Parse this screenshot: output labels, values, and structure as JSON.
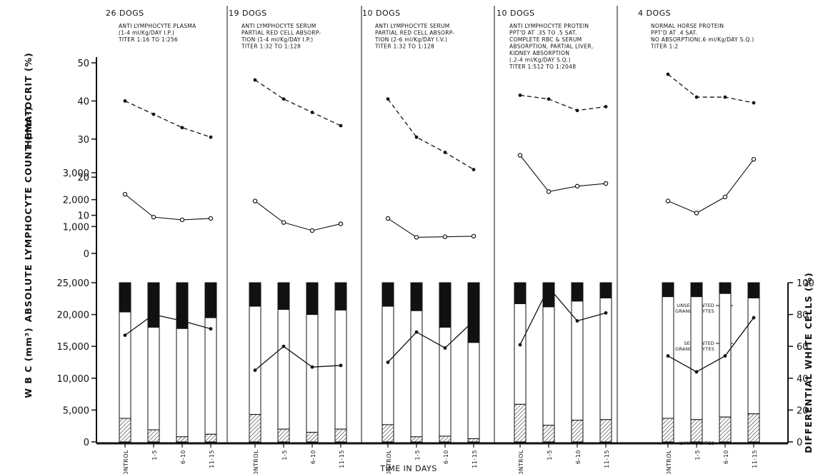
{
  "chart_data": {
    "type": "line",
    "xlabel": "TIME IN DAYS",
    "categories": [
      "CONTROL",
      "1-5",
      "6-10",
      "11-15"
    ],
    "panels": {
      "hematocrit": {
        "ylabel": "HEMATOCRIT (%)",
        "ylim": [
          0,
          50
        ],
        "ticks": [
          "0",
          "10",
          "20",
          "30",
          "40",
          "50"
        ]
      },
      "lymph": {
        "ylabel": "ABSOLUTE LYMPHOCYTE COUNT (mm³)",
        "ylim": [
          0,
          3000
        ],
        "ticks": [
          "0",
          "1,000",
          "2,000",
          "3,000"
        ]
      },
      "wbc": {
        "ylabel": "W B C (mm³)",
        "ylim": [
          0,
          25000
        ],
        "ticks": [
          "0",
          "5,000",
          "10,000",
          "15,000",
          "20,000",
          "25,000"
        ]
      },
      "diff": {
        "ylabel": "DIFFERENTIAL WHITE CELLS (%)",
        "ylim": [
          0,
          100
        ],
        "ticks": [
          "0",
          "20",
          "40",
          "60",
          "80",
          "100"
        ]
      }
    },
    "annotations": {
      "unsegmented": [
        "UNSEGMENTED",
        "GRANULOCYTES"
      ],
      "segmented": [
        "SEGMENTED",
        "GRANULOCYTES"
      ],
      "lymphocytes": "LYMPHOCYTES"
    },
    "groups": [
      {
        "title": "26 DOGS",
        "desc": [
          "ANTI LYMPHOCYTE PLASMA",
          "(1-4 ml/Kg/DAY I.P.)",
          "TITER 1:16 TO 1:256"
        ],
        "ticks": [
          "CONTROL",
          "1-5",
          "6-10",
          "11-15"
        ],
        "hematocrit": [
          40,
          36.5,
          33,
          30.5
        ],
        "lymph": [
          2200,
          1350,
          1250,
          1300
        ],
        "wbc_pct": [
          67,
          80,
          76,
          71
        ],
        "wbc_stack": [
          {
            "lymph": 3700,
            "seg": 20400,
            "total": 25000
          },
          {
            "lymph": 1900,
            "seg": 18000,
            "total": 25000
          },
          {
            "lymph": 800,
            "seg": 17800,
            "total": 25000
          },
          {
            "lymph": 1200,
            "seg": 19500,
            "total": 25000
          }
        ]
      },
      {
        "title": "19 DOGS",
        "desc": [
          "ANTI LYMPHOCYTE SERUM",
          "PARTIAL RED CELL ABSORP-",
          "TION (1-4 ml/Kg/DAY I.P.)",
          "TITER 1:32 TO 1:128"
        ],
        "ticks": [
          "CONTROL",
          "1-5",
          "6-10",
          "11-15"
        ],
        "hematocrit": [
          45.5,
          40.5,
          37,
          33.5
        ],
        "lymph": [
          1950,
          1150,
          850,
          1100
        ],
        "wbc_pct": [
          45,
          60,
          47,
          48
        ],
        "wbc_stack": [
          {
            "lymph": 4300,
            "seg": 21300,
            "total": 25000
          },
          {
            "lymph": 2000,
            "seg": 20800,
            "total": 25000
          },
          {
            "lymph": 1500,
            "seg": 20000,
            "total": 25000
          },
          {
            "lymph": 2000,
            "seg": 20700,
            "total": 25000
          }
        ]
      },
      {
        "title": "10 DOGS",
        "desc": [
          "ANTI LYMPHOCYTE SERUM",
          "PARTIAL RED CELL ABSORP-",
          "TION (2-6 ml/Kg/DAY I.V.)",
          "TITER 1:32 TO 1:128"
        ],
        "ticks": [
          "CONTROL",
          "1-5",
          "6-10",
          "11-15"
        ],
        "hematocrit": [
          40.5,
          30.5,
          26.5,
          22
        ],
        "lymph": [
          1300,
          600,
          620,
          640
        ],
        "wbc_pct": [
          50,
          69,
          59,
          76
        ],
        "wbc_stack": [
          {
            "lymph": 2700,
            "seg": 21300,
            "total": 25000
          },
          {
            "lymph": 800,
            "seg": 20600,
            "total": 25000
          },
          {
            "lymph": 900,
            "seg": 18000,
            "total": 25000
          },
          {
            "lymph": 500,
            "seg": 15600,
            "total": 25000
          }
        ]
      },
      {
        "title": "10 DOGS",
        "desc": [
          "ANTI LYMPHOCYTE PROTEIN",
          "PPT'D AT .35 TO .5 SAT.",
          "COMPLETE RBC & SERUM",
          "ABSORPTION, PARTIAL LIVER,",
          "KIDNEY ABSORPTION",
          "(.2-4 ml/Kg/DAY S.Q.)",
          "TITER 1:512 TO 1:2048"
        ],
        "ticks": [
          "CONTROL",
          "1-5",
          "6-10",
          "11-15"
        ],
        "hematocrit": [
          41.5,
          40.5,
          37.5,
          38.5
        ],
        "lymph": [
          3650,
          2300,
          2500,
          2600
        ],
        "wbc_pct": [
          61,
          97,
          76,
          81
        ],
        "wbc_stack": [
          {
            "lymph": 5900,
            "seg": 21700,
            "total": 25000
          },
          {
            "lymph": 2600,
            "seg": 21200,
            "total": 25000
          },
          {
            "lymph": 3400,
            "seg": 22100,
            "total": 25000
          },
          {
            "lymph": 3500,
            "seg": 22600,
            "total": 25000
          }
        ]
      },
      {
        "title": "4 DOGS",
        "desc": [
          "NORMAL HORSE PROTEIN",
          "PPT'D AT .4 SAT.",
          "NO ABSORPTION(.6 ml/Kg/DAY S.Q.)",
          "TITER 1:2"
        ],
        "ticks": [
          "CONTROL",
          "1-5",
          "6-10",
          "11-15"
        ],
        "hematocrit": [
          47,
          41,
          41,
          39.5
        ],
        "lymph": [
          1950,
          1500,
          2100,
          3500
        ],
        "wbc_pct": [
          54,
          44,
          54,
          78
        ],
        "wbc_stack": [
          {
            "lymph": 3700,
            "seg": 22800,
            "total": 25000
          },
          {
            "lymph": 3500,
            "seg": 22800,
            "total": 25000
          },
          {
            "lymph": 3900,
            "seg": 23300,
            "total": 25000
          },
          {
            "lymph": 4400,
            "seg": 22600,
            "total": 25000
          }
        ]
      }
    ]
  }
}
